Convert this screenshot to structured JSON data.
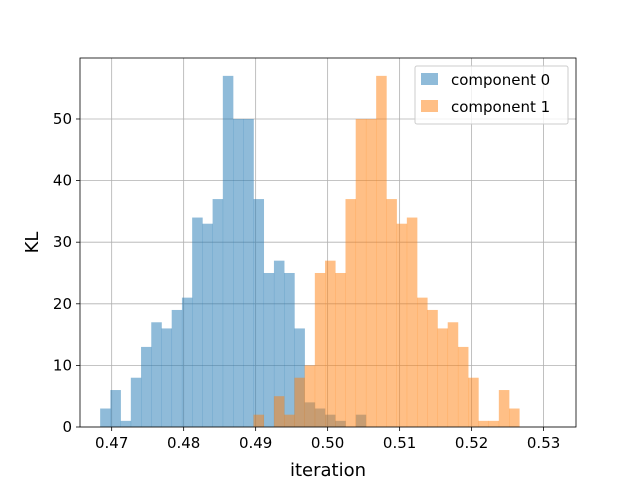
{
  "chart_data": {
    "type": "bar",
    "xlabel": "iteration",
    "ylabel": "KL",
    "xlim": [
      0.4656,
      0.5345
    ],
    "ylim": [
      0,
      59.9
    ],
    "x_ticks": [
      0.47,
      0.48,
      0.49,
      0.5,
      0.51,
      0.52,
      0.53
    ],
    "x_tick_labels": [
      "0.47",
      "0.48",
      "0.49",
      "0.50",
      "0.51",
      "0.52",
      "0.53"
    ],
    "y_ticks": [
      0,
      10,
      20,
      30,
      40,
      50
    ],
    "y_tick_labels": [
      "0",
      "10",
      "20",
      "30",
      "40",
      "50"
    ],
    "grid": true,
    "legend_position": "top-right",
    "series": [
      {
        "name": "component 0",
        "color": "#1f77b4",
        "alpha": 0.5,
        "bin_start": 0.4684,
        "bin_width": 0.00142,
        "counts": [
          3,
          6,
          1,
          8,
          13,
          17,
          16,
          19,
          21,
          34,
          33,
          37,
          57,
          50,
          50,
          37,
          25,
          27,
          25,
          16,
          4,
          3,
          2,
          1,
          0,
          2
        ]
      },
      {
        "name": "component 1",
        "color": "#ff7f0e",
        "alpha": 0.5,
        "bin_start": 0.4897,
        "bin_width": 0.00142,
        "counts": [
          2,
          0,
          5,
          2,
          8,
          10,
          25,
          27,
          25,
          37,
          50,
          50,
          57,
          37,
          33,
          34,
          21,
          19,
          16,
          17,
          13,
          8,
          1,
          1,
          6,
          3
        ]
      }
    ]
  }
}
